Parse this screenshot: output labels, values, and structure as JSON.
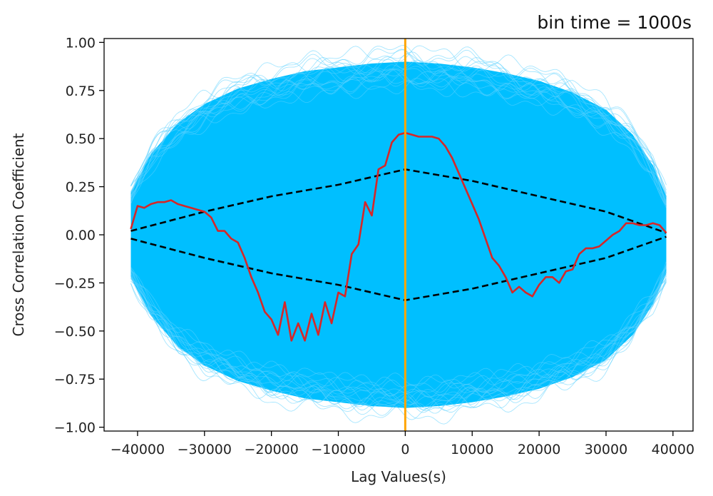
{
  "chart_data": {
    "type": "line",
    "title": "bin time = 1000s",
    "xlabel": "Lag Values(s)",
    "ylabel": "Cross Correlation Coefficient",
    "xlim": [
      -45000,
      43000
    ],
    "ylim": [
      -1.02,
      1.02
    ],
    "xticks": [
      -40000,
      -30000,
      -20000,
      -10000,
      0,
      10000,
      20000,
      30000,
      40000
    ],
    "xtick_labels": [
      "−40000",
      "−30000",
      "−20000",
      "−10000",
      "0",
      "10000",
      "20000",
      "30000",
      "40000"
    ],
    "yticks": [
      1.0,
      0.75,
      0.5,
      0.25,
      0.0,
      -0.25,
      -0.5,
      -0.75,
      -1.0
    ],
    "ytick_labels": [
      "1.00",
      "0.75",
      "0.50",
      "0.25",
      "0.00",
      "−0.25",
      "−0.50",
      "−0.75",
      "−1.00"
    ],
    "grid": false,
    "colors": {
      "simulations": "#00bfff",
      "observed": "#d62728",
      "envelope": "#000000",
      "zero_lag": "#ffa500"
    },
    "simulation_envelope": {
      "x": [
        -41000,
        -38000,
        -34000,
        -30000,
        -25000,
        -20000,
        -15000,
        -10000,
        -5000,
        0,
        5000,
        10000,
        15000,
        20000,
        25000,
        30000,
        34000,
        37000,
        39000
      ],
      "upper": [
        0.22,
        0.42,
        0.58,
        0.68,
        0.76,
        0.81,
        0.85,
        0.87,
        0.89,
        0.9,
        0.89,
        0.87,
        0.84,
        0.8,
        0.74,
        0.65,
        0.52,
        0.36,
        0.2
      ],
      "lower": [
        -0.22,
        -0.42,
        -0.58,
        -0.68,
        -0.76,
        -0.81,
        -0.85,
        -0.87,
        -0.89,
        -0.9,
        -0.89,
        -0.87,
        -0.84,
        -0.8,
        -0.74,
        -0.65,
        -0.52,
        -0.36,
        -0.2
      ]
    },
    "confidence_upper": {
      "x": [
        -41000,
        -30000,
        -20000,
        -10000,
        0,
        10000,
        20000,
        30000,
        39000
      ],
      "y": [
        0.02,
        0.12,
        0.2,
        0.26,
        0.34,
        0.28,
        0.2,
        0.12,
        0.01
      ]
    },
    "confidence_lower": {
      "x": [
        -41000,
        -30000,
        -20000,
        -10000,
        0,
        10000,
        20000,
        30000,
        39000
      ],
      "y": [
        -0.02,
        -0.12,
        -0.2,
        -0.26,
        -0.34,
        -0.28,
        -0.2,
        -0.12,
        -0.01
      ]
    },
    "zero_lag_x": 0,
    "series": [
      {
        "x": [
          -41000,
          -40000,
          -39000,
          -38000,
          -37000,
          -36000,
          -35000,
          -34000,
          -33000,
          -32000,
          -31000,
          -30000,
          -29000,
          -28000,
          -27000,
          -26000,
          -25000,
          -24000,
          -23000,
          -22000,
          -21000,
          -20000,
          -19000,
          -18000,
          -17000,
          -16000,
          -15000,
          -14000,
          -13000,
          -12000,
          -11000,
          -10000,
          -9000,
          -8000,
          -7000,
          -6000,
          -5000,
          -4000,
          -3000,
          -2000,
          -1000,
          0,
          1000,
          2000,
          3000,
          4000,
          5000,
          6000,
          7000,
          8000,
          9000,
          10000,
          11000,
          12000,
          13000,
          14000,
          15000,
          16000,
          17000,
          18000,
          19000,
          20000,
          21000,
          22000,
          23000,
          24000,
          25000,
          26000,
          27000,
          28000,
          29000,
          30000,
          31000,
          32000,
          33000,
          34000,
          35000,
          36000,
          37000,
          38000,
          39000
        ],
        "y": [
          0.03,
          0.15,
          0.14,
          0.16,
          0.17,
          0.17,
          0.18,
          0.16,
          0.15,
          0.14,
          0.13,
          0.12,
          0.09,
          0.02,
          0.02,
          -0.02,
          -0.04,
          -0.12,
          -0.22,
          -0.3,
          -0.4,
          -0.44,
          -0.52,
          -0.35,
          -0.55,
          -0.46,
          -0.55,
          -0.41,
          -0.52,
          -0.35,
          -0.46,
          -0.3,
          -0.32,
          -0.1,
          -0.05,
          0.17,
          0.1,
          0.34,
          0.36,
          0.48,
          0.52,
          0.53,
          0.52,
          0.51,
          0.51,
          0.51,
          0.5,
          0.46,
          0.4,
          0.32,
          0.24,
          0.16,
          0.08,
          -0.02,
          -0.12,
          -0.16,
          -0.22,
          -0.3,
          -0.27,
          -0.3,
          -0.32,
          -0.26,
          -0.22,
          -0.22,
          -0.25,
          -0.19,
          -0.18,
          -0.1,
          -0.07,
          -0.07,
          -0.06,
          -0.03,
          0.0,
          0.02,
          0.06,
          0.06,
          0.05,
          0.05,
          0.06,
          0.05,
          0.01
        ]
      }
    ]
  }
}
